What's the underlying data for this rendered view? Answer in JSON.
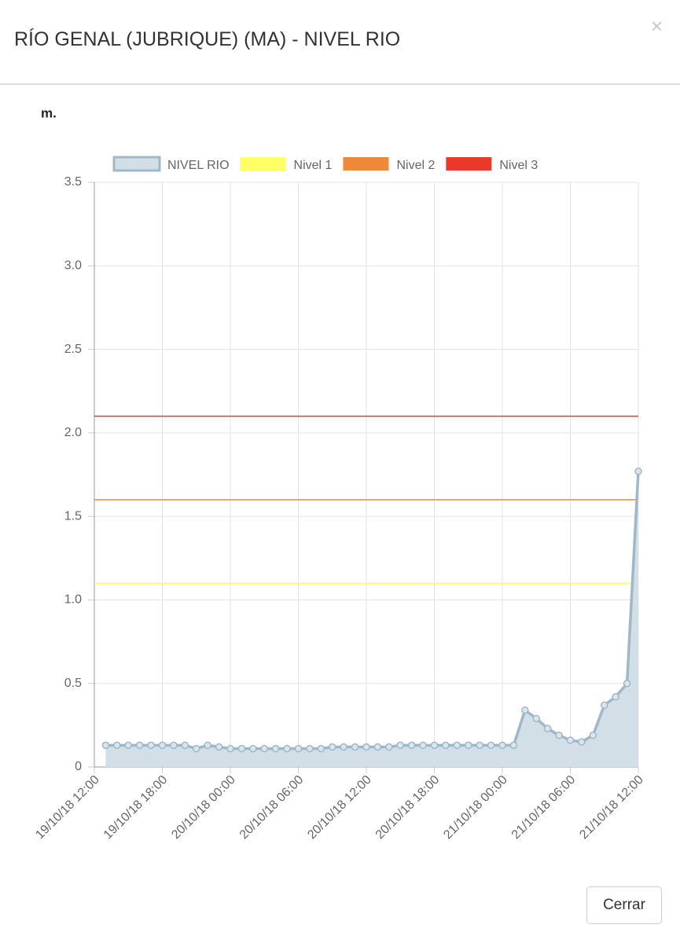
{
  "header": {
    "title": "RÍO GENAL (JUBRIQUE) (MA) - NIVEL RIO",
    "close": "×"
  },
  "chart_data": {
    "type": "line",
    "y_label": "m.",
    "x": [
      "19/10/18 13:00",
      "19/10/18 14:00",
      "19/10/18 15:00",
      "19/10/18 16:00",
      "19/10/18 17:00",
      "19/10/18 18:00",
      "19/10/18 19:00",
      "19/10/18 20:00",
      "19/10/18 21:00",
      "19/10/18 22:00",
      "19/10/18 23:00",
      "20/10/18 00:00",
      "20/10/18 01:00",
      "20/10/18 02:00",
      "20/10/18 03:00",
      "20/10/18 04:00",
      "20/10/18 05:00",
      "20/10/18 06:00",
      "20/10/18 07:00",
      "20/10/18 08:00",
      "20/10/18 09:00",
      "20/10/18 10:00",
      "20/10/18 11:00",
      "20/10/18 12:00",
      "20/10/18 13:00",
      "20/10/18 14:00",
      "20/10/18 15:00",
      "20/10/18 16:00",
      "20/10/18 17:00",
      "20/10/18 18:00",
      "20/10/18 19:00",
      "20/10/18 20:00",
      "20/10/18 21:00",
      "20/10/18 22:00",
      "20/10/18 23:00",
      "21/10/18 00:00",
      "21/10/18 01:00",
      "21/10/18 02:00",
      "21/10/18 03:00",
      "21/10/18 04:00",
      "21/10/18 05:00",
      "21/10/18 06:00",
      "21/10/18 07:00",
      "21/10/18 08:00",
      "21/10/18 09:00",
      "21/10/18 10:00",
      "21/10/18 11:00",
      "21/10/18 12:00"
    ],
    "series": [
      {
        "name": "NIVEL RIO",
        "color": "#9fb8c9",
        "fill": "#d3dfe7",
        "values": [
          0.13,
          0.13,
          0.13,
          0.13,
          0.13,
          0.13,
          0.13,
          0.13,
          0.11,
          0.13,
          0.12,
          0.11,
          0.11,
          0.11,
          0.11,
          0.11,
          0.11,
          0.11,
          0.11,
          0.11,
          0.12,
          0.12,
          0.12,
          0.12,
          0.12,
          0.12,
          0.13,
          0.13,
          0.13,
          0.13,
          0.13,
          0.13,
          0.13,
          0.13,
          0.13,
          0.13,
          0.13,
          0.34,
          0.29,
          0.23,
          0.19,
          0.16,
          0.15,
          0.19,
          0.37,
          0.42,
          0.5,
          1.77
        ]
      }
    ],
    "thresholds": [
      {
        "name": "Nivel 1",
        "color": "#ffff66",
        "value": 1.1
      },
      {
        "name": "Nivel 2",
        "color": "#f0883a",
        "value": 1.6
      },
      {
        "name": "Nivel 3",
        "color": "#e8392a",
        "value": 2.1
      }
    ],
    "xlim": [
      "19/10/18 12:00",
      "21/10/18 12:00"
    ],
    "xticks": [
      "19/10/18 12:00",
      "19/10/18 18:00",
      "20/10/18 00:00",
      "20/10/18 06:00",
      "20/10/18 12:00",
      "20/10/18 18:00",
      "21/10/18 00:00",
      "21/10/18 06:00",
      "21/10/18 12:00"
    ],
    "ylim": [
      0,
      3.5
    ],
    "yticks": [
      0,
      0.5,
      {
        "value": 1,
        "label": "1.0"
      },
      1.5,
      {
        "value": 2,
        "label": "2.0"
      },
      2.5,
      {
        "value": 3,
        "label": "3.0"
      },
      3.5
    ],
    "grid": true
  },
  "footer": {
    "button": "Cerrar"
  }
}
